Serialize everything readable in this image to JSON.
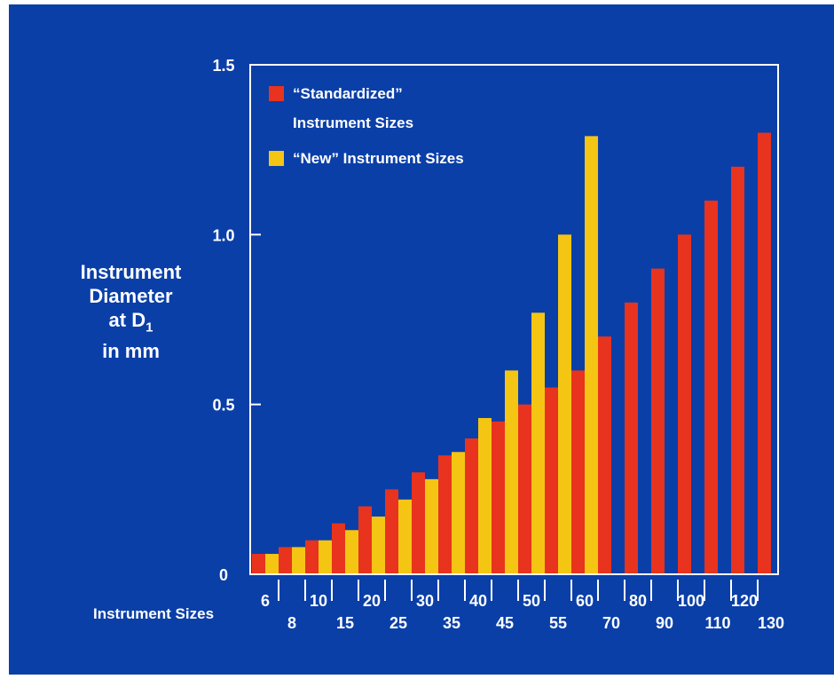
{
  "chart_data": {
    "type": "bar",
    "title": "",
    "ylabel": {
      "line1": "Instrument",
      "line2": "Diameter",
      "line3_main": "at D",
      "line3_sub": "1",
      "line4": "in mm"
    },
    "xlabel": "Instrument Sizes",
    "ylim": [
      0,
      1.5
    ],
    "yticks": [
      "0",
      "0.5",
      "1.0",
      "1.5"
    ],
    "ytick_values": [
      0,
      0.5,
      1.0,
      1.5
    ],
    "categories": [
      "6",
      "8",
      "10",
      "15",
      "20",
      "25",
      "30",
      "35",
      "40",
      "45",
      "50",
      "55",
      "60",
      "70",
      "80",
      "90",
      "100",
      "110",
      "120",
      "130"
    ],
    "series": [
      {
        "name_line1": "“Standardized”",
        "name_line2": "Instrument Sizes",
        "color": "#e8331e",
        "values": [
          0.06,
          0.08,
          0.1,
          0.15,
          0.2,
          0.25,
          0.3,
          0.35,
          0.4,
          0.45,
          0.5,
          0.55,
          0.6,
          0.7,
          0.8,
          0.9,
          1.0,
          1.1,
          1.2,
          1.3
        ]
      },
      {
        "name": "“New” Instrument Sizes",
        "color": "#f5c514",
        "values": [
          0.06,
          0.08,
          0.1,
          0.13,
          0.17,
          0.22,
          0.28,
          0.36,
          0.46,
          0.6,
          0.77,
          1.0,
          1.29,
          null,
          null,
          null,
          null,
          null,
          null,
          null
        ]
      }
    ],
    "legend_position": "top-left",
    "grid": false
  },
  "colors": {
    "background": "#0a3fa8",
    "axis": "#ffffff",
    "text": "#ffffff"
  }
}
